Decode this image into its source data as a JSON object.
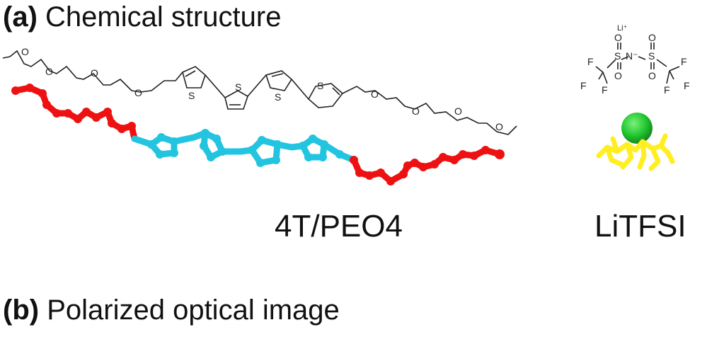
{
  "panel_a": {
    "letter": "(a)",
    "title": "Chemical structure"
  },
  "panel_b": {
    "letter": "(b)",
    "title": "Polarized optical image"
  },
  "molecule_4t": {
    "label": "4T/PEO4",
    "atoms": {
      "oxygen": "O",
      "sulfur": "S"
    },
    "colors": {
      "peo_chain": "#ee1111",
      "thiophene_core": "#22c4e0"
    }
  },
  "litfsi": {
    "label": "LiTFSI",
    "lithium": "Li⁺",
    "nitrogen": "N⁻",
    "sulfur": "S",
    "oxygen": "O",
    "fluorine": "F",
    "colors": {
      "lithium_sphere": "#22c830",
      "tfsi_anion": "#ffee22"
    }
  }
}
